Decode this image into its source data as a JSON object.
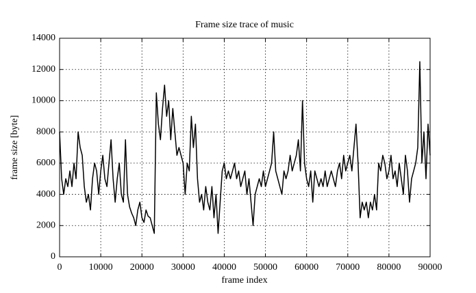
{
  "chart_data": {
    "type": "line",
    "title": "Frame size trace of music",
    "x_label": "frame index",
    "y_label": "frame size [byte]",
    "color": "#000000",
    "grid": true,
    "xlim": [
      0,
      90000
    ],
    "ylim": [
      0,
      14000
    ],
    "xticks": [
      0,
      10000,
      20000,
      30000,
      40000,
      50000,
      60000,
      70000,
      80000,
      90000
    ],
    "yticks": [
      0,
      2000,
      4000,
      6000,
      8000,
      10000,
      12000,
      14000
    ],
    "x": [
      0,
      500,
      1000,
      1500,
      2000,
      2500,
      3000,
      3500,
      4000,
      4500,
      5000,
      5500,
      6000,
      6500,
      7000,
      7500,
      8000,
      8500,
      9000,
      9500,
      10000,
      10500,
      11000,
      11500,
      12000,
      12500,
      13000,
      13500,
      14000,
      14500,
      15000,
      15500,
      16000,
      16500,
      17000,
      17500,
      18000,
      18500,
      19000,
      19500,
      20000,
      20500,
      21000,
      21500,
      22000,
      22500,
      23000,
      23500,
      24000,
      24500,
      25000,
      25500,
      26000,
      26500,
      27000,
      27500,
      28000,
      28500,
      29000,
      29500,
      30000,
      30500,
      31000,
      31500,
      32000,
      32500,
      33000,
      33500,
      34000,
      34500,
      35000,
      35500,
      36000,
      36500,
      37000,
      37500,
      38000,
      38500,
      39000,
      39500,
      40000,
      40500,
      41000,
      41500,
      42000,
      42500,
      43000,
      43500,
      44000,
      44500,
      45000,
      45500,
      46000,
      46500,
      47000,
      47500,
      48000,
      48500,
      49000,
      49500,
      50000,
      50500,
      51000,
      51500,
      52000,
      52500,
      53000,
      53500,
      54000,
      54500,
      55000,
      55500,
      56000,
      56500,
      57000,
      57500,
      58000,
      58500,
      59000,
      59500,
      60000,
      60500,
      61000,
      61500,
      62000,
      62500,
      63000,
      63500,
      64000,
      64500,
      65000,
      65500,
      66000,
      66500,
      67000,
      67500,
      68000,
      68500,
      69000,
      69500,
      70000,
      70500,
      71000,
      71500,
      72000,
      72500,
      73000,
      73500,
      74000,
      74500,
      75000,
      75500,
      76000,
      76500,
      77000,
      77500,
      78000,
      78500,
      79000,
      79500,
      80000,
      80500,
      81000,
      81500,
      82000,
      82500,
      83000,
      83500,
      84000,
      84500,
      85000,
      85500,
      86000,
      86500,
      87000,
      87500,
      88000,
      88500,
      89000,
      89500,
      90000
    ],
    "values": [
      8000,
      5000,
      4000,
      5000,
      4500,
      5500,
      4500,
      6000,
      5000,
      8000,
      7000,
      6500,
      4500,
      3500,
      4000,
      3000,
      5000,
      6000,
      5500,
      4000,
      5500,
      6500,
      5000,
      4500,
      6000,
      7500,
      5000,
      3500,
      5000,
      6000,
      4000,
      3500,
      7500,
      4000,
      3200,
      2800,
      2500,
      2000,
      3000,
      3500,
      2500,
      2200,
      3000,
      2600,
      2500,
      2000,
      1500,
      10500,
      8500,
      7500,
      9500,
      11000,
      9000,
      10000,
      7500,
      9500,
      8000,
      6500,
      7000,
      6500,
      6000,
      4000,
      6000,
      5500,
      9000,
      7000,
      8500,
      5000,
      3500,
      4000,
      3000,
      4500,
      3500,
      3000,
      4500,
      2500,
      4000,
      1500,
      3500,
      5500,
      6000,
      5000,
      5500,
      5000,
      5500,
      6000,
      5000,
      5500,
      4500,
      5000,
      5500,
      4000,
      5000,
      3500,
      2000,
      4000,
      4500,
      5000,
      4500,
      5500,
      4500,
      5000,
      5500,
      6000,
      8000,
      5500,
      5000,
      4500,
      4000,
      5500,
      5000,
      5500,
      6500,
      5500,
      6000,
      6500,
      7500,
      5500,
      10000,
      6000,
      5000,
      4500,
      5500,
      3500,
      5500,
      5000,
      4500,
      5000,
      4500,
      5500,
      4500,
      5000,
      5500,
      5000,
      4500,
      5500,
      6000,
      5000,
      6500,
      5500,
      6000,
      6500,
      5500,
      7000,
      8500,
      6000,
      2500,
      3500,
      3000,
      3500,
      2500,
      3500,
      3000,
      4000,
      3000,
      6000,
      5500,
      6500,
      6000,
      5000,
      5500,
      6500,
      5000,
      5500,
      4500,
      6000,
      5000,
      4000,
      6500,
      5500,
      3500,
      5000,
      5500,
      6000,
      7000,
      12500,
      6000,
      8000,
      5000,
      8500,
      6500
    ]
  }
}
